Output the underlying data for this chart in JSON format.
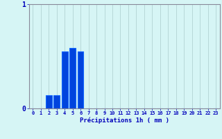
{
  "title": "",
  "xlabel": "Précipitations 1h ( mm )",
  "ylabel": "",
  "background_color": "#d6f5f5",
  "bar_color": "#0044dd",
  "bar_edge_color": "#1166ff",
  "grid_color": "#aacccc",
  "axis_color": "#888899",
  "text_color": "#0000bb",
  "hours": [
    0,
    1,
    2,
    3,
    4,
    5,
    6,
    7,
    8,
    9,
    10,
    11,
    12,
    13,
    14,
    15,
    16,
    17,
    18,
    19,
    20,
    21,
    22,
    23
  ],
  "values": [
    0,
    0,
    0.13,
    0.13,
    0.55,
    0.58,
    0.55,
    0,
    0,
    0,
    0,
    0,
    0,
    0,
    0,
    0,
    0,
    0,
    0,
    0,
    0,
    0,
    0,
    0
  ],
  "ylim": [
    0,
    1.0
  ],
  "yticks": [
    0,
    1
  ],
  "xlim": [
    -0.5,
    23.5
  ],
  "figsize": [
    3.2,
    2.0
  ],
  "dpi": 100
}
